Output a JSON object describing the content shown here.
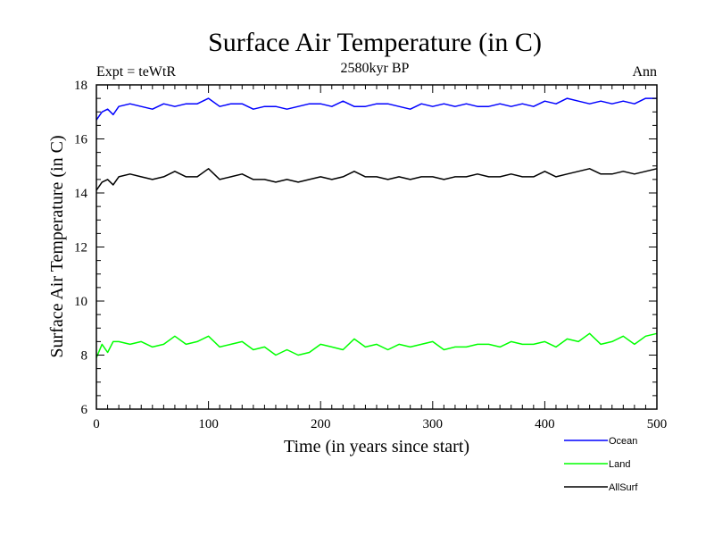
{
  "chart_data": {
    "type": "line",
    "title": "Surface Air Temperature (in C)",
    "subtitle": "2580kyr BP",
    "left_label": "Expt = teWtR",
    "right_label": "Ann",
    "xlabel": "Time (in years since start)",
    "ylabel": "Surface Air Temperature (in C)",
    "xlim": [
      0,
      500
    ],
    "ylim": [
      6,
      18
    ],
    "x_ticks": [
      "0",
      "100",
      "200",
      "300",
      "400",
      "500"
    ],
    "y_ticks": [
      "6",
      "8",
      "10",
      "12",
      "14",
      "16",
      "18"
    ],
    "x_tick_values": [
      0,
      100,
      200,
      300,
      400,
      500
    ],
    "y_tick_values": [
      6,
      8,
      10,
      12,
      14,
      16,
      18
    ],
    "grid": false,
    "legend_position": "bottom-right",
    "series": [
      {
        "name": "Ocean",
        "color": "#0000ff",
        "x": [
          0,
          5,
          10,
          15,
          20,
          30,
          40,
          50,
          60,
          70,
          80,
          90,
          100,
          110,
          120,
          130,
          140,
          150,
          160,
          170,
          180,
          190,
          200,
          210,
          220,
          230,
          240,
          250,
          260,
          270,
          280,
          290,
          300,
          310,
          320,
          330,
          340,
          350,
          360,
          370,
          380,
          390,
          400,
          410,
          420,
          430,
          440,
          450,
          460,
          470,
          480,
          490,
          500
        ],
        "values": [
          16.7,
          17.0,
          17.1,
          16.9,
          17.2,
          17.3,
          17.2,
          17.1,
          17.3,
          17.2,
          17.3,
          17.3,
          17.5,
          17.2,
          17.3,
          17.3,
          17.1,
          17.2,
          17.2,
          17.1,
          17.2,
          17.3,
          17.3,
          17.2,
          17.4,
          17.2,
          17.2,
          17.3,
          17.3,
          17.2,
          17.1,
          17.3,
          17.2,
          17.3,
          17.2,
          17.3,
          17.2,
          17.2,
          17.3,
          17.2,
          17.3,
          17.2,
          17.4,
          17.3,
          17.5,
          17.4,
          17.3,
          17.4,
          17.3,
          17.4,
          17.3,
          17.5,
          17.5
        ]
      },
      {
        "name": "Land",
        "color": "#00ff00",
        "x": [
          0,
          5,
          10,
          15,
          20,
          30,
          40,
          50,
          60,
          70,
          80,
          90,
          100,
          110,
          120,
          130,
          140,
          150,
          160,
          170,
          180,
          190,
          200,
          210,
          220,
          230,
          240,
          250,
          260,
          270,
          280,
          290,
          300,
          310,
          320,
          330,
          340,
          350,
          360,
          370,
          380,
          390,
          400,
          410,
          420,
          430,
          440,
          450,
          460,
          470,
          480,
          490,
          500
        ],
        "values": [
          7.9,
          8.4,
          8.1,
          8.5,
          8.5,
          8.4,
          8.5,
          8.3,
          8.4,
          8.7,
          8.4,
          8.5,
          8.7,
          8.3,
          8.4,
          8.5,
          8.2,
          8.3,
          8.0,
          8.2,
          8.0,
          8.1,
          8.4,
          8.3,
          8.2,
          8.6,
          8.3,
          8.4,
          8.2,
          8.4,
          8.3,
          8.4,
          8.5,
          8.2,
          8.3,
          8.3,
          8.4,
          8.4,
          8.3,
          8.5,
          8.4,
          8.4,
          8.5,
          8.3,
          8.6,
          8.5,
          8.8,
          8.4,
          8.5,
          8.7,
          8.4,
          8.7,
          8.8
        ]
      },
      {
        "name": "AllSurf",
        "color": "#000000",
        "x": [
          0,
          5,
          10,
          15,
          20,
          30,
          40,
          50,
          60,
          70,
          80,
          90,
          100,
          110,
          120,
          130,
          140,
          150,
          160,
          170,
          180,
          190,
          200,
          210,
          220,
          230,
          240,
          250,
          260,
          270,
          280,
          290,
          300,
          310,
          320,
          330,
          340,
          350,
          360,
          370,
          380,
          390,
          400,
          410,
          420,
          430,
          440,
          450,
          460,
          470,
          480,
          490,
          500
        ],
        "values": [
          14.1,
          14.4,
          14.5,
          14.3,
          14.6,
          14.7,
          14.6,
          14.5,
          14.6,
          14.8,
          14.6,
          14.6,
          14.9,
          14.5,
          14.6,
          14.7,
          14.5,
          14.5,
          14.4,
          14.5,
          14.4,
          14.5,
          14.6,
          14.5,
          14.6,
          14.8,
          14.6,
          14.6,
          14.5,
          14.6,
          14.5,
          14.6,
          14.6,
          14.5,
          14.6,
          14.6,
          14.7,
          14.6,
          14.6,
          14.7,
          14.6,
          14.6,
          14.8,
          14.6,
          14.7,
          14.8,
          14.9,
          14.7,
          14.7,
          14.8,
          14.7,
          14.8,
          14.9
        ]
      }
    ]
  }
}
